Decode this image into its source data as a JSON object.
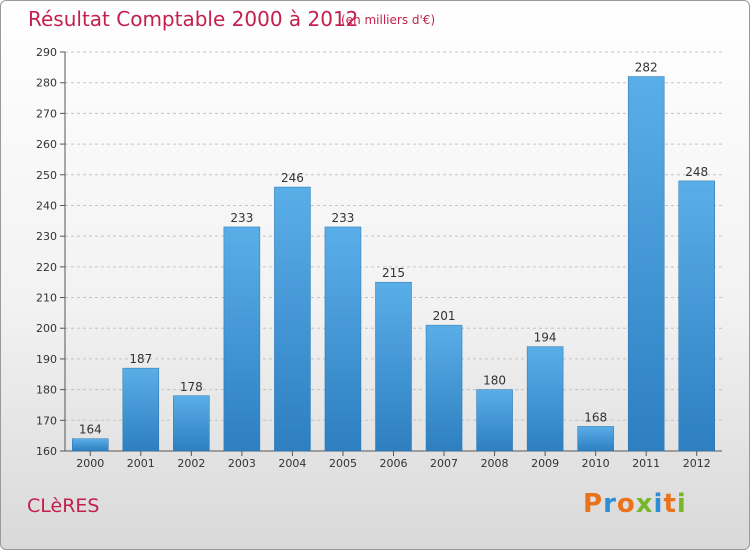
{
  "header": {
    "title": "Résultat Comptable 2000 à 2012",
    "subtitle": "(en milliers d'€)"
  },
  "footer": {
    "commune": "CLèRES",
    "brand": "Proxiti",
    "brand_colors": [
      "#e8731a",
      "#2c8fd6",
      "#e8731a",
      "#78b828",
      "#2c8fd6",
      "#e8731a",
      "#78b828"
    ]
  },
  "chart_data": {
    "type": "bar",
    "title": "Résultat Comptable 2000 à 2012",
    "subtitle": "(en milliers d'€)",
    "categories": [
      "2000",
      "2001",
      "2002",
      "2003",
      "2004",
      "2005",
      "2006",
      "2007",
      "2008",
      "2009",
      "2010",
      "2011",
      "2012"
    ],
    "values": [
      164,
      187,
      178,
      233,
      246,
      233,
      215,
      201,
      180,
      194,
      168,
      282,
      248
    ],
    "ylim": [
      160,
      290
    ],
    "yticks": [
      160,
      170,
      180,
      190,
      200,
      210,
      220,
      230,
      240,
      250,
      260,
      270,
      280,
      290
    ],
    "grid": true,
    "bar_color_top": "#5aaee8",
    "bar_color_bottom": "#2d7fc0",
    "text_color": "#c3204f"
  }
}
